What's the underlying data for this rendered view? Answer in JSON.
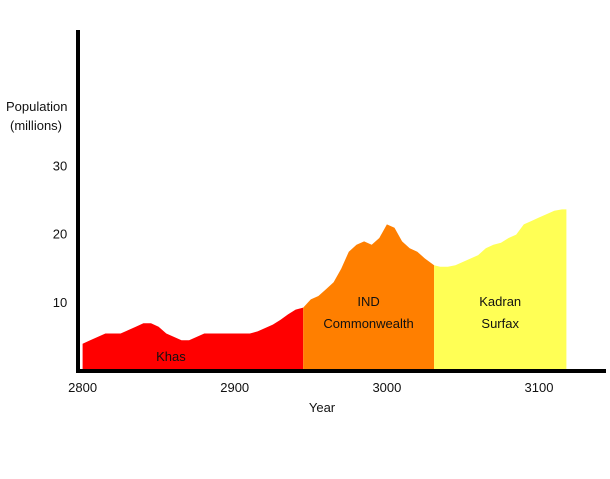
{
  "chart_data": {
    "type": "area",
    "title": "",
    "xlabel": "Year",
    "ylabel_lines": [
      "Population",
      "(millions)"
    ],
    "xlim": [
      2797,
      3144
    ],
    "ylim": [
      0,
      50
    ],
    "x_ticks": [
      2800,
      2900,
      3000,
      3100
    ],
    "x_tick_labels": [
      "2800",
      "2900",
      "3000",
      "3100"
    ],
    "y_ticks": [
      10,
      20,
      30
    ],
    "y_tick_labels": [
      "10",
      "20",
      "30"
    ],
    "grid": false,
    "legend": "none",
    "series": [
      {
        "name": "Khas",
        "label_lines": [
          "Khas"
        ],
        "color": "#ff0000",
        "x": [
          2800,
          2805,
          2810,
          2815,
          2820,
          2825,
          2830,
          2835,
          2840,
          2845,
          2850,
          2855,
          2860,
          2865,
          2870,
          2875,
          2880,
          2890,
          2900,
          2905,
          2910,
          2915,
          2920,
          2925,
          2930,
          2935,
          2940,
          2945
        ],
        "y": [
          4.0,
          4.5,
          5.0,
          5.5,
          5.5,
          5.5,
          6.0,
          6.5,
          7.0,
          7.0,
          6.5,
          5.5,
          5.0,
          4.5,
          4.5,
          5.0,
          5.5,
          5.5,
          5.5,
          5.5,
          5.5,
          5.8,
          6.3,
          6.8,
          7.5,
          8.3,
          9.0,
          9.3
        ]
      },
      {
        "name": "IND Commonwealth",
        "label_lines": [
          "IND",
          "Commonwealth"
        ],
        "color": "#ff7f00",
        "x": [
          2945,
          2950,
          2955,
          2960,
          2965,
          2970,
          2975,
          2980,
          2985,
          2990,
          2995,
          3000,
          3005,
          3010,
          3015,
          3020,
          3025,
          3031
        ],
        "y": [
          9.3,
          10.5,
          11.0,
          12.0,
          13.0,
          15.0,
          17.5,
          18.5,
          19.0,
          18.5,
          19.5,
          21.5,
          21.0,
          19.0,
          18.0,
          17.5,
          16.5,
          15.5
        ]
      },
      {
        "name": "Kadran Surfax",
        "label_lines": [
          "Kadran",
          "Surfax"
        ],
        "color": "#ffff55",
        "x": [
          3031,
          3035,
          3040,
          3045,
          3050,
          3055,
          3060,
          3065,
          3070,
          3075,
          3080,
          3085,
          3090,
          3095,
          3100,
          3105,
          3110,
          3115,
          3118
        ],
        "y": [
          15.5,
          15.3,
          15.3,
          15.5,
          16.0,
          16.5,
          17.0,
          18.0,
          18.5,
          18.8,
          19.5,
          20.0,
          21.5,
          22.0,
          22.5,
          23.0,
          23.5,
          23.7,
          23.7
        ]
      }
    ]
  }
}
